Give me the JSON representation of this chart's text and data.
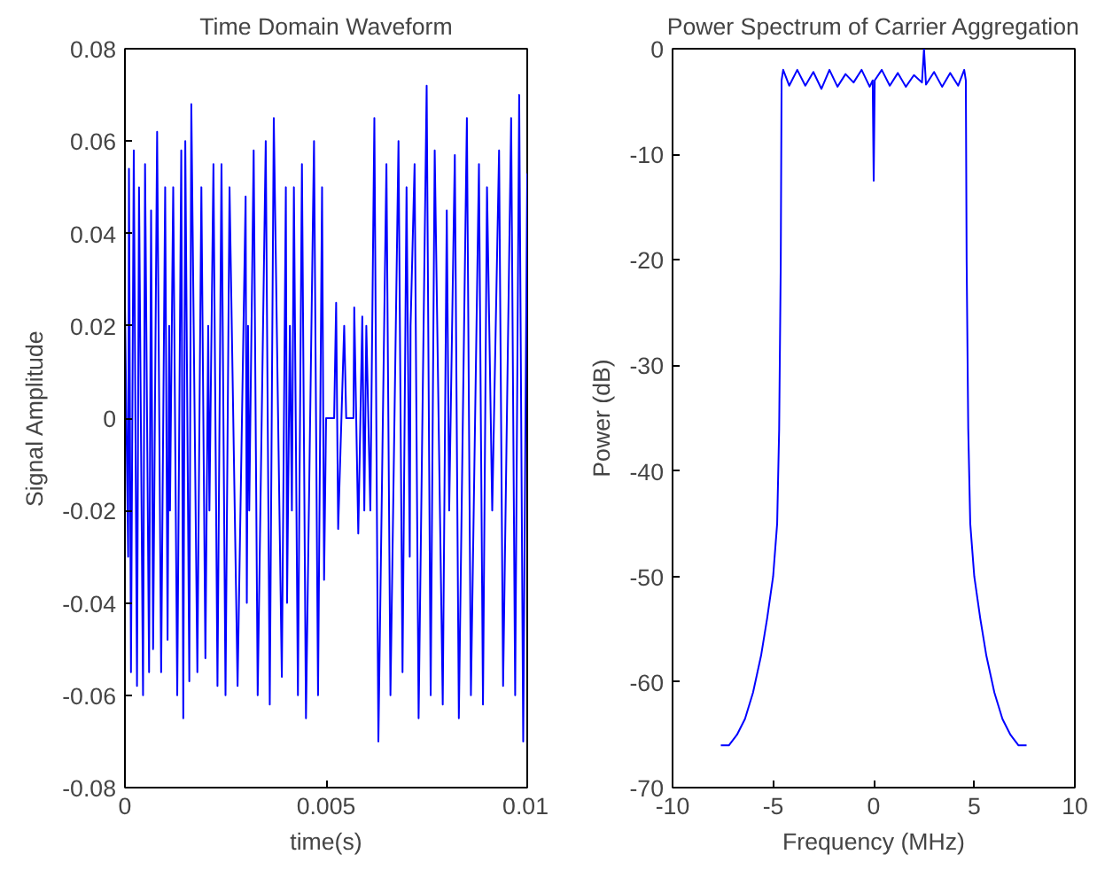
{
  "chart_data": [
    {
      "type": "line",
      "title": "Time Domain Waveform",
      "xlabel": "time(s)",
      "ylabel": "Signal Amplitude",
      "x": [
        0,
        8e-05,
        0.0001,
        0.00015,
        0.00022,
        0.0003,
        0.00035,
        0.00045,
        0.0005,
        0.0006,
        0.00065,
        0.0007,
        0.0008,
        0.0009,
        0.001,
        0.00106,
        0.0011,
        0.00112,
        0.0012,
        0.0013,
        0.0014,
        0.00145,
        0.0015,
        0.0016,
        0.00165,
        0.0018,
        0.0019,
        0.002,
        0.00207,
        0.0021,
        0.0022,
        0.0023,
        0.0024,
        0.0025,
        0.0026,
        0.0028,
        0.003,
        0.00303,
        0.00306,
        0.00309,
        0.0032,
        0.0033,
        0.0035,
        0.0036,
        0.0037,
        0.0039,
        0.004,
        0.00403,
        0.0041,
        0.00415,
        0.0042,
        0.0043,
        0.0044,
        0.0045,
        0.0047,
        0.0048,
        0.0049,
        0.00495,
        0.005,
        0.0052,
        0.00525,
        0.0053,
        0.00545,
        0.0055,
        0.00568,
        0.0057,
        0.0058,
        0.0059,
        0.00595,
        0.006,
        0.0061,
        0.0062,
        0.0063,
        0.0065,
        0.0066,
        0.0068,
        0.0069,
        0.007,
        0.00708,
        0.0071,
        0.0072,
        0.0073,
        0.0075,
        0.0076,
        0.0077,
        0.0079,
        0.008,
        0.00806,
        0.0082,
        0.0083,
        0.0085,
        0.0086,
        0.0088,
        0.0089,
        0.009,
        0.00913,
        0.0093,
        0.0094,
        0.0096,
        0.0097,
        0.0098,
        0.0099,
        0.01
      ],
      "series": [
        {
          "color": "#0000ff",
          "values": [
            0.025,
            -0.03,
            0.054,
            -0.055,
            0.058,
            -0.058,
            0.05,
            -0.06,
            0.055,
            -0.055,
            0.045,
            -0.05,
            0.062,
            -0.055,
            0.05,
            -0.048,
            0.02,
            -0.02,
            0.05,
            -0.06,
            0.058,
            -0.065,
            0.06,
            -0.057,
            0.068,
            -0.055,
            0.05,
            -0.052,
            0.02,
            -0.02,
            0.055,
            -0.058,
            0.055,
            -0.06,
            0.05,
            -0.058,
            0.048,
            -0.04,
            0.02,
            -0.02,
            0.058,
            -0.06,
            0.06,
            -0.062,
            0.065,
            -0.056,
            0.05,
            -0.04,
            0.02,
            -0.02,
            0.05,
            -0.06,
            0.055,
            -0.065,
            0.06,
            -0.06,
            0.05,
            -0.035,
            0,
            0,
            0.025,
            -0.024,
            0.02,
            0,
            0,
            0.024,
            -0.025,
            0.022,
            -0.02,
            0.02,
            -0.02,
            0.065,
            -0.07,
            0.055,
            -0.06,
            0.06,
            -0.055,
            0.05,
            -0.03,
            0.02,
            0.055,
            -0.065,
            0.072,
            -0.06,
            0.058,
            -0.062,
            0.045,
            -0.02,
            0.057,
            -0.065,
            0.065,
            -0.06,
            0.055,
            -0.062,
            0.05,
            -0.02,
            0.058,
            -0.058,
            0.065,
            -0.06,
            0.07,
            -0.07,
            0.053
          ]
        }
      ],
      "xlim": [
        0,
        0.01
      ],
      "xticks": [
        0,
        0.005,
        0.01
      ],
      "ylim": [
        -0.08,
        0.08
      ],
      "yticks": [
        -0.08,
        -0.06,
        -0.04,
        -0.02,
        0,
        0.02,
        0.04,
        0.06,
        0.08
      ],
      "grid": false
    },
    {
      "type": "line",
      "title": "Power Spectrum of Carrier Aggregation",
      "xlabel": "Frequency (MHz)",
      "ylabel": "Power (dB)",
      "x": [
        -7.6,
        -7.2,
        -6.8,
        -6.4,
        -6.0,
        -5.6,
        -5.3,
        -5.0,
        -4.8,
        -4.7,
        -4.62,
        -4.58,
        -4.5,
        -4.2,
        -3.8,
        -3.4,
        -3,
        -2.6,
        -2.2,
        -1.8,
        -1.4,
        -1,
        -0.6,
        -0.2,
        -0.05,
        0,
        0.05,
        0.4,
        0.8,
        1.2,
        1.6,
        2,
        2.4,
        2.5,
        2.6,
        3,
        3.4,
        3.8,
        4.2,
        4.5,
        4.58,
        4.62,
        4.7,
        4.8,
        5.0,
        5.3,
        5.6,
        6,
        6.4,
        6.8,
        7.2,
        7.6
      ],
      "series": [
        {
          "color": "#0000ff",
          "values": [
            -66,
            -66,
            -65,
            -63.5,
            -61,
            -57.5,
            -54,
            -50,
            -45,
            -36,
            -20,
            -3,
            -2,
            -3.5,
            -2,
            -3.5,
            -2.2,
            -3.8,
            -2,
            -3.6,
            -2.4,
            -3.2,
            -2,
            -3.6,
            -3,
            -12.5,
            -3,
            -2,
            -3.5,
            -2.3,
            -3.6,
            -2.5,
            -3.2,
            0,
            -3.4,
            -2.2,
            -3.6,
            -2.3,
            -3.5,
            -2,
            -3,
            -20,
            -36,
            -45,
            -50,
            -54,
            -57.5,
            -61,
            -63.5,
            -65,
            -66,
            -66
          ]
        }
      ],
      "xlim": [
        -10,
        10
      ],
      "xticks": [
        -10,
        -5,
        0,
        5,
        10
      ],
      "ylim": [
        -70,
        0
      ],
      "yticks": [
        -70,
        -60,
        -50,
        -40,
        -30,
        -20,
        -10,
        0
      ],
      "grid": false
    }
  ]
}
